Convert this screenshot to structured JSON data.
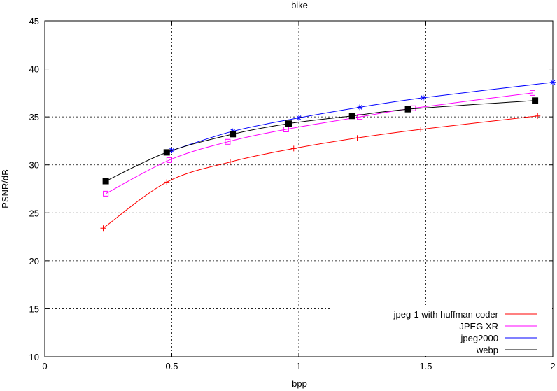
{
  "chart_data": {
    "type": "line",
    "title": "bike",
    "xlabel": "bpp",
    "ylabel": "PSNR/dB",
    "xlim": [
      0,
      2
    ],
    "ylim": [
      10,
      45
    ],
    "x_ticks": [
      0,
      0.5,
      1,
      1.5,
      2
    ],
    "x_tick_labels": [
      "0",
      "0.5",
      "1",
      "1.5",
      "2"
    ],
    "y_ticks": [
      10,
      15,
      20,
      25,
      30,
      35,
      40,
      45
    ],
    "y_tick_labels": [
      "10",
      "15",
      "20",
      "25",
      "30",
      "35",
      "40",
      "45"
    ],
    "grid": true,
    "legend": "bottom-right",
    "series": [
      {
        "name": "jpeg-1 with huffman coder",
        "color": "#ff0000",
        "marker": "plus",
        "x": [
          0.23,
          0.48,
          0.73,
          0.98,
          1.23,
          1.48,
          1.94
        ],
        "y": [
          23.4,
          28.2,
          30.3,
          31.7,
          32.8,
          33.7,
          35.1
        ]
      },
      {
        "name": "JPEG XR",
        "color": "#ff00ff",
        "marker": "square-open",
        "x": [
          0.24,
          0.49,
          0.72,
          0.95,
          1.24,
          1.45,
          1.92
        ],
        "y": [
          27.0,
          30.5,
          32.4,
          33.7,
          35.0,
          35.9,
          37.5
        ]
      },
      {
        "name": "jpeg2000",
        "color": "#0000ff",
        "marker": "star",
        "x": [
          0.5,
          0.74,
          1.0,
          1.24,
          1.49,
          2.0
        ],
        "y": [
          31.5,
          33.5,
          34.9,
          36.0,
          37.0,
          38.6
        ]
      },
      {
        "name": "webp",
        "color": "#000000",
        "marker": "square-filled",
        "x": [
          0.24,
          0.48,
          0.74,
          0.96,
          1.21,
          1.43,
          1.93
        ],
        "y": [
          28.3,
          31.3,
          33.2,
          34.3,
          35.1,
          35.8,
          36.7
        ]
      }
    ]
  }
}
